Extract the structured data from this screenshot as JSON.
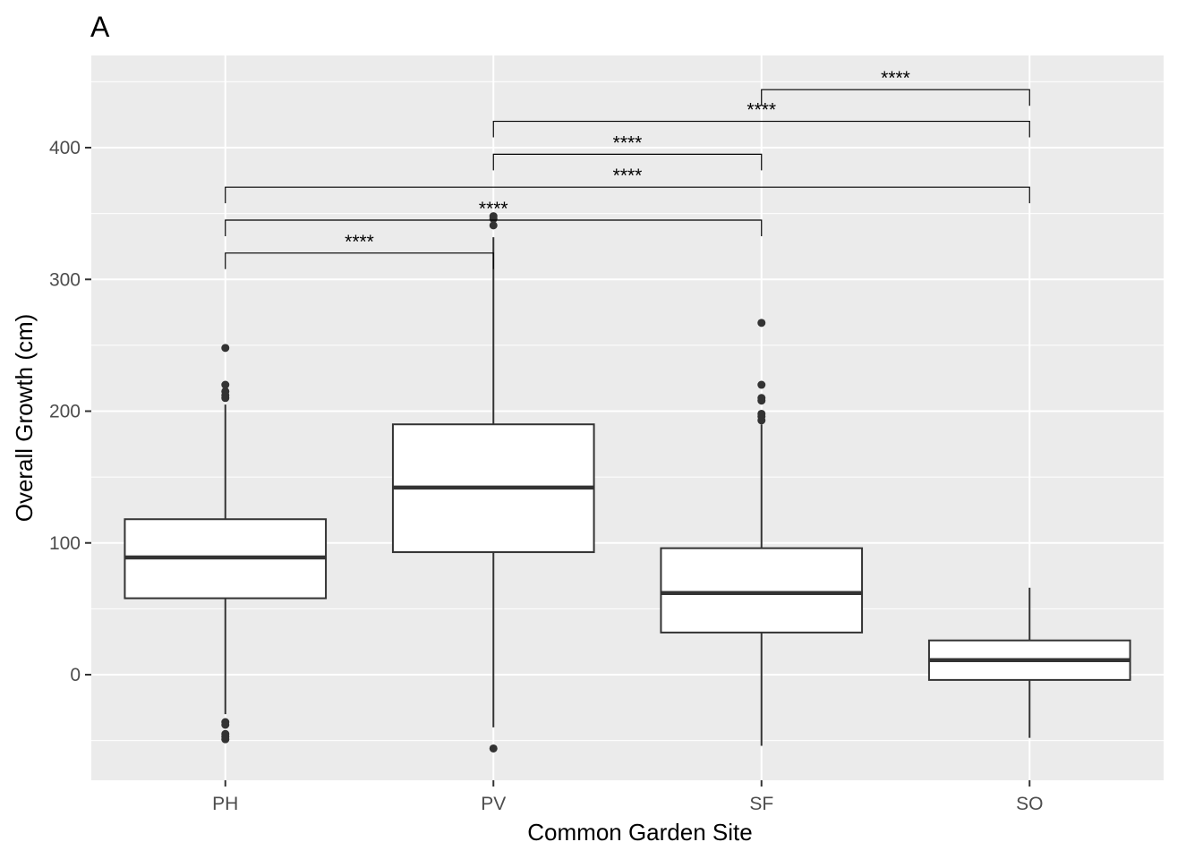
{
  "chart_data": {
    "type": "box",
    "tag": "A",
    "xlabel": "Common Garden Site",
    "ylabel": "Overall Growth (cm)",
    "categories": [
      "PH",
      "PV",
      "SF",
      "SO"
    ],
    "ylim": [
      -80,
      465
    ],
    "yticks": [
      0,
      100,
      200,
      300,
      400
    ],
    "ytick_labels": [
      "0",
      "100",
      "200",
      "300",
      "400"
    ],
    "grid": true,
    "boxes": [
      {
        "category": "PH",
        "whisker_low": -30,
        "q1": 58,
        "median": 89,
        "q3": 118,
        "whisker_high": 205,
        "outliers": [
          -36,
          -38,
          -45,
          -47,
          -49,
          210,
          212,
          215,
          220,
          248
        ]
      },
      {
        "category": "PV",
        "whisker_low": -40,
        "q1": 93,
        "median": 142,
        "q3": 190,
        "whisker_high": 332,
        "outliers": [
          -56,
          341,
          346,
          348
        ]
      },
      {
        "category": "SF",
        "whisker_low": -54,
        "q1": 32,
        "median": 62,
        "q3": 96,
        "whisker_high": 190,
        "outliers": [
          193,
          196,
          198,
          208,
          210,
          220,
          267
        ]
      },
      {
        "category": "SO",
        "whisker_low": -48,
        "q1": -4,
        "median": 11,
        "q3": 26,
        "whisker_high": 66,
        "outliers": []
      }
    ],
    "comparisons": [
      {
        "from": "PH",
        "to": "PV",
        "y": 320,
        "label": "****"
      },
      {
        "from": "PH",
        "to": "SF",
        "y": 345,
        "label": "****"
      },
      {
        "from": "PH",
        "to": "SO",
        "y": 370,
        "label": "****"
      },
      {
        "from": "PV",
        "to": "SF",
        "y": 395,
        "label": "****"
      },
      {
        "from": "PV",
        "to": "SO",
        "y": 420,
        "label": "****"
      },
      {
        "from": "SF",
        "to": "SO",
        "y": 444,
        "label": "****"
      }
    ]
  }
}
